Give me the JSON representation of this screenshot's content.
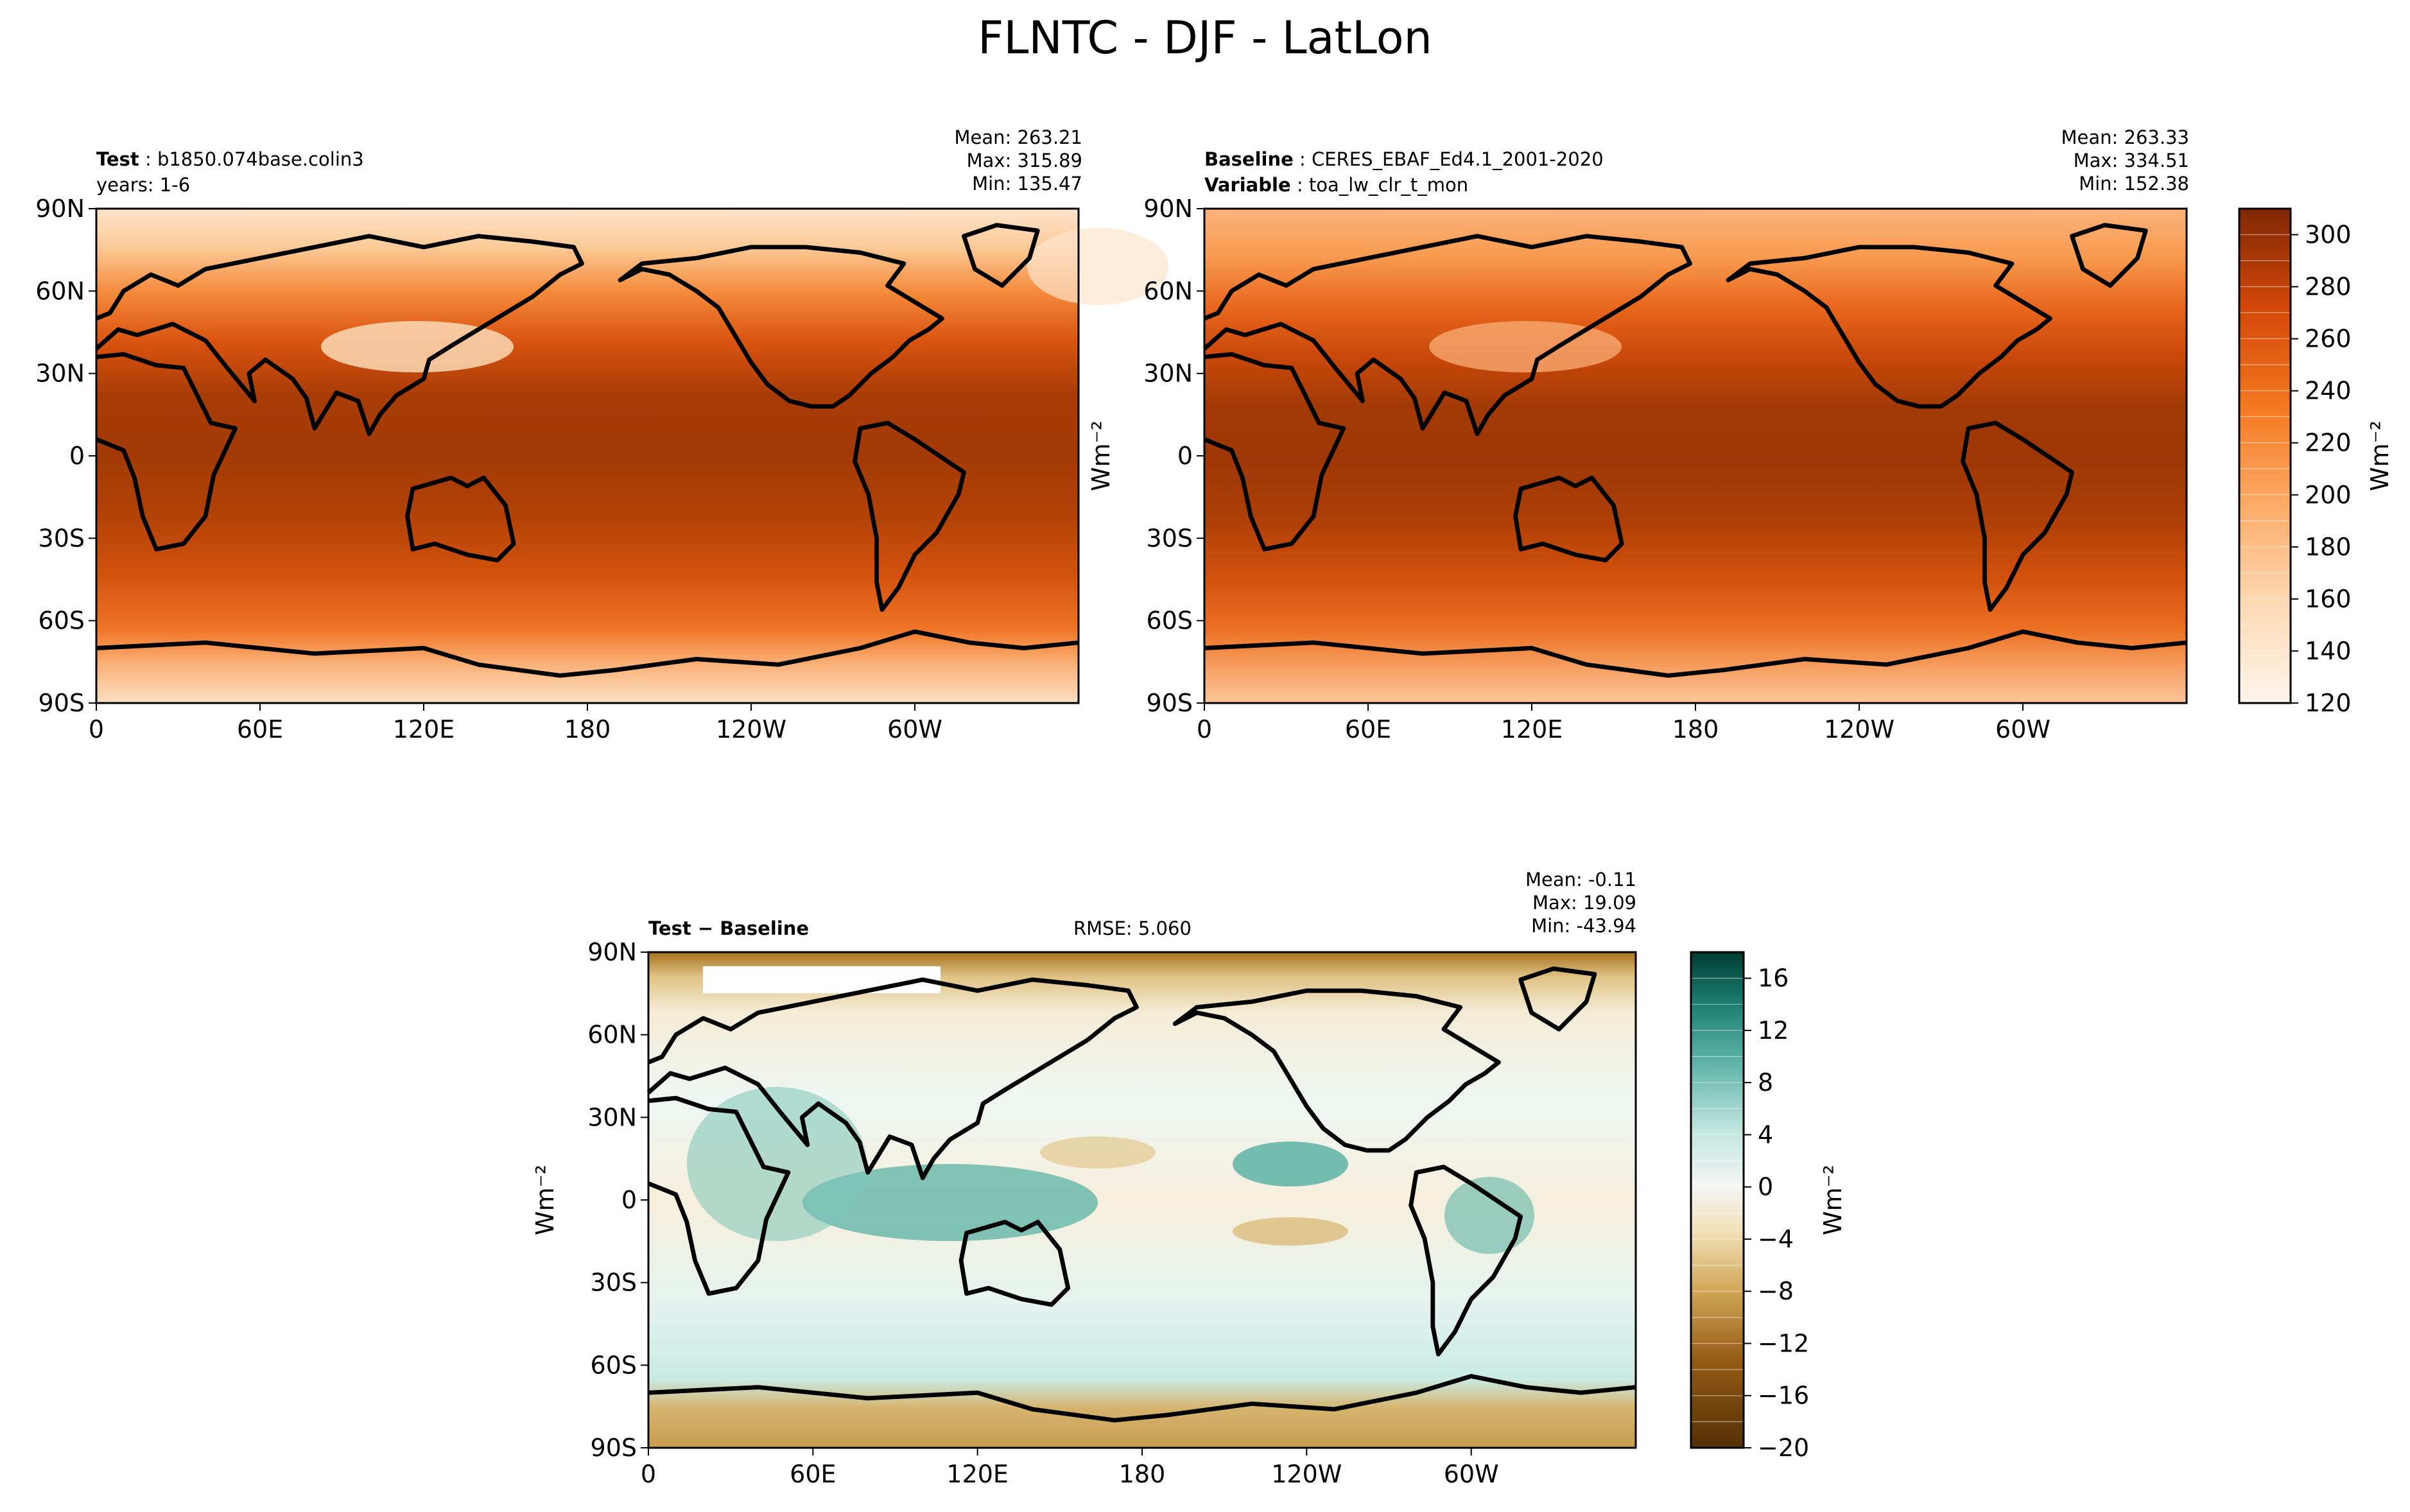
{
  "title": "FLNTC - DJF - LatLon",
  "panels": {
    "test": {
      "label_key": "Test",
      "label_value": "b1850.074base.colin3",
      "years": "years: 1-6",
      "mean": "Mean: 263.21",
      "max": "Max: 315.89",
      "min": "Min: 135.47"
    },
    "baseline": {
      "label_key": "Baseline",
      "label_value": "CERES_EBAF_Ed4.1_2001-2020",
      "variable_key": "Variable",
      "variable_value": "toa_lw_clr_t_mon",
      "mean": "Mean: 263.33",
      "max": "Max: 334.51",
      "min": "Min: 152.38"
    },
    "diff": {
      "label": "Test − Baseline",
      "rmse": "RMSE: 5.060",
      "mean": "Mean: -0.11",
      "max": "Max: 19.09",
      "min": "Min: -43.94"
    }
  },
  "units": "Wm⁻²",
  "chart_data": [
    {
      "type": "heatmap",
      "panel": "Test",
      "x_ticks": [
        "0",
        "60E",
        "120E",
        "180",
        "120W",
        "60W"
      ],
      "y_ticks": [
        "90N",
        "60N",
        "30N",
        "0",
        "30S",
        "60S",
        "90S"
      ],
      "xlim": [
        0,
        360
      ],
      "ylim": [
        -90,
        90
      ],
      "mean": 263.21,
      "max": 315.89,
      "min": 135.47,
      "colormap": "Oranges"
    },
    {
      "type": "heatmap",
      "panel": "Baseline",
      "x_ticks": [
        "0",
        "60E",
        "120E",
        "180",
        "120W",
        "60W"
      ],
      "y_ticks": [
        "90N",
        "60N",
        "30N",
        "0",
        "30S",
        "60S",
        "90S"
      ],
      "xlim": [
        0,
        360
      ],
      "ylim": [
        -90,
        90
      ],
      "mean": 263.33,
      "max": 334.51,
      "min": 152.38,
      "colormap": "Oranges",
      "colorbar": {
        "range": [
          120,
          310
        ],
        "ticks": [
          "120",
          "140",
          "160",
          "180",
          "200",
          "220",
          "240",
          "260",
          "280",
          "300"
        ],
        "label": "Wm⁻²"
      }
    },
    {
      "type": "heatmap",
      "panel": "Test − Baseline",
      "x_ticks": [
        "0",
        "60E",
        "120E",
        "180",
        "120W",
        "60W"
      ],
      "y_ticks": [
        "90N",
        "60N",
        "30N",
        "0",
        "30S",
        "60S",
        "90S"
      ],
      "xlim": [
        0,
        360
      ],
      "ylim": [
        -90,
        90
      ],
      "mean": -0.11,
      "max": 19.09,
      "min": -43.94,
      "rmse": 5.06,
      "colormap": "BrBG",
      "colorbar": {
        "range": [
          -20,
          18
        ],
        "ticks": [
          "−20",
          "−16",
          "−12",
          "−8",
          "−4",
          "0",
          "4",
          "8",
          "12",
          "16"
        ],
        "label": "Wm⁻²"
      }
    }
  ]
}
